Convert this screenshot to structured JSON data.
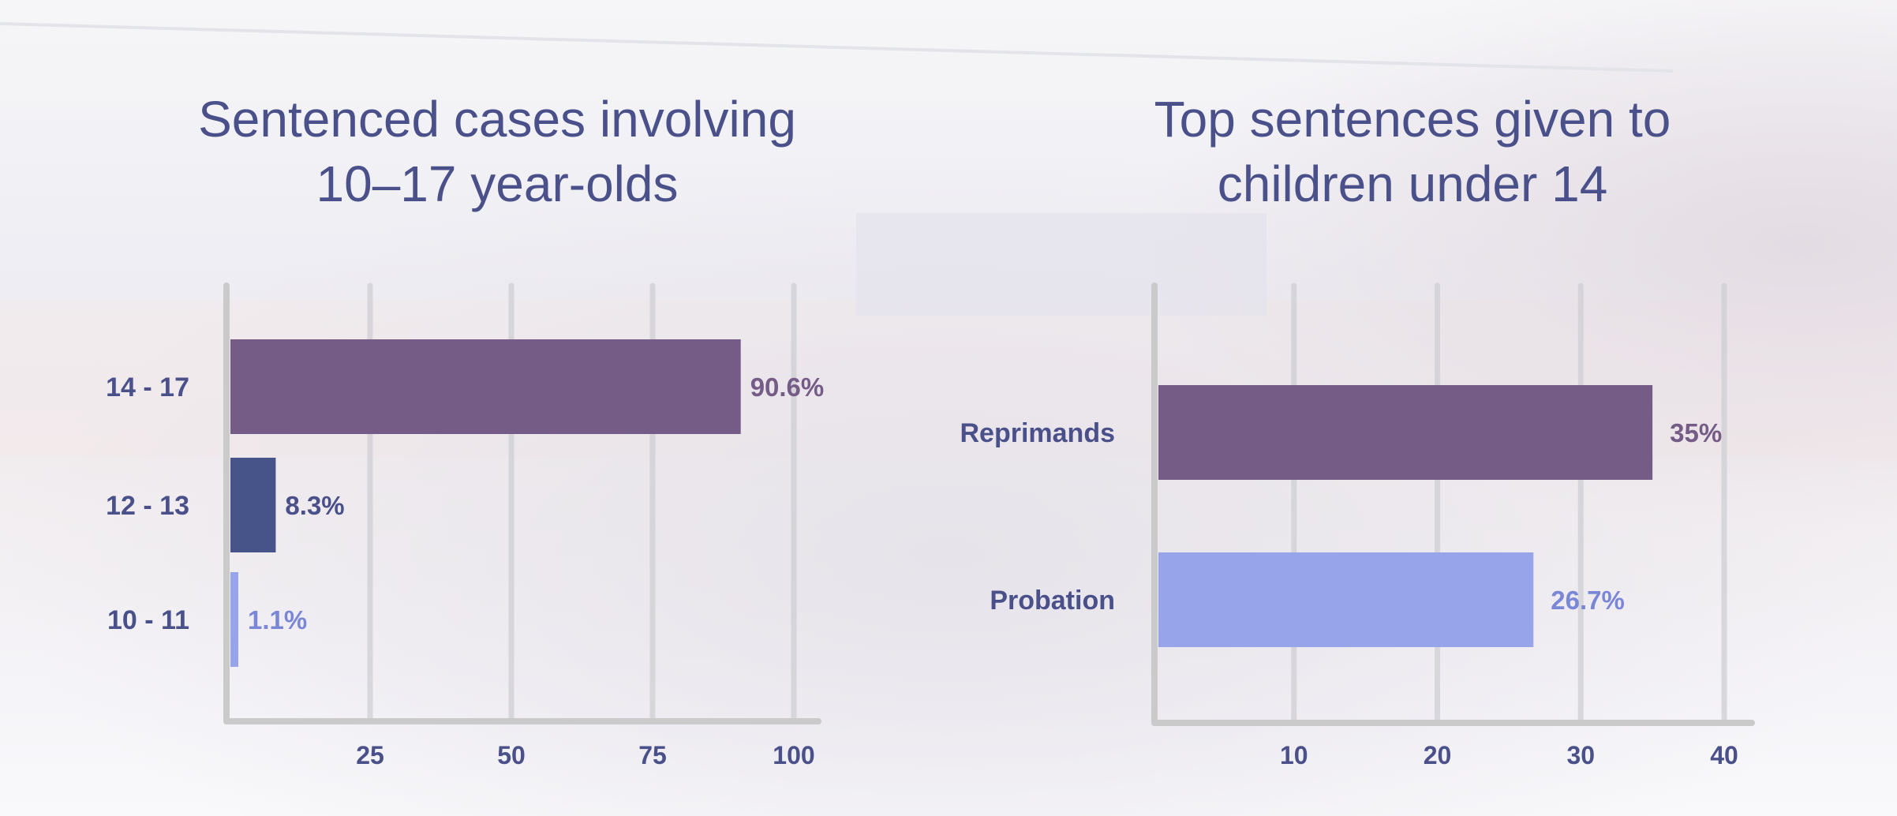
{
  "colors": {
    "title": "#4a5089",
    "axis": "#cacaca",
    "grid": "#cfcfd4",
    "bar_purple": "#755c87",
    "bar_navy": "#475489",
    "bar_light": "#97a4ea"
  },
  "chart_data": [
    {
      "type": "bar",
      "orientation": "horizontal",
      "title_lines": [
        "Sentenced cases involving",
        "10–17 year-olds"
      ],
      "categories": [
        "14 - 17",
        "12 - 13",
        "10 - 11"
      ],
      "values": [
        90.6,
        8.3,
        1.1
      ],
      "value_labels": [
        "90.6%",
        "8.3%",
        "1.1%"
      ],
      "bar_colors": [
        "#755c87",
        "#475489",
        "#97a4ea"
      ],
      "label_colors": [
        "#755c87",
        "#4a5089",
        "#7a86d6"
      ],
      "xticks": [
        25,
        50,
        75,
        100
      ],
      "xtick_labels": [
        "25",
        "50",
        "75",
        "100"
      ],
      "xlim": [
        0,
        100
      ],
      "grid": true
    },
    {
      "type": "bar",
      "orientation": "horizontal",
      "title_lines": [
        "Top sentences given to",
        "children under 14"
      ],
      "categories": [
        "Reprimands",
        "Probation"
      ],
      "values": [
        35,
        26.7
      ],
      "value_labels": [
        "35%",
        "26.7%"
      ],
      "bar_colors": [
        "#755c87",
        "#97a4ea"
      ],
      "label_colors": [
        "#755c87",
        "#7a86d6"
      ],
      "xticks": [
        10,
        20,
        30,
        40
      ],
      "xtick_labels": [
        "10",
        "20",
        "30",
        "40"
      ],
      "xlim": [
        0,
        40
      ],
      "grid": true
    }
  ]
}
